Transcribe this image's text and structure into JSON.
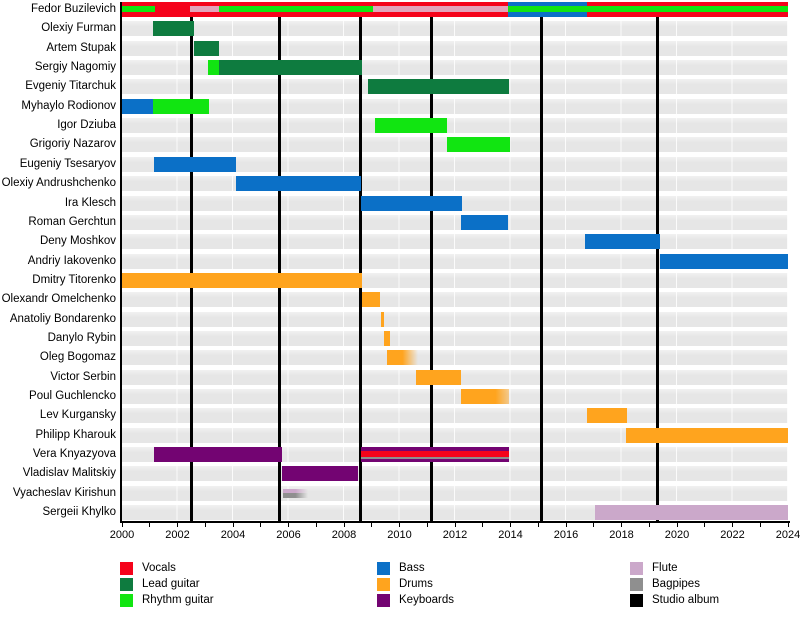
{
  "chart_data": {
    "type": "bar",
    "subtype": "band-members-timeline-gantt",
    "title": "",
    "xlabel": "",
    "ylabel": "",
    "axis": {
      "start": 2000,
      "end": 2024,
      "label_step": 2,
      "tick_step": 1
    },
    "grid": "row-bands-with-2yr-separators",
    "legend_position": "bottom",
    "colors": {
      "vocals": "#F5031B",
      "lead_guitar": "#0E7B3F",
      "rhythm_guitar": "#11E511",
      "bass": "#0B70C7",
      "drums": "#FFA41E",
      "keyboards": "#730472",
      "flute": "#CBA8CA",
      "flute_alt": "#E2A4BB",
      "bagpipes": "#8F8F8F",
      "studio_album": "#000000",
      "row_band": "#E7E7E7"
    },
    "legend": [
      {
        "role": "vocals",
        "label": "Vocals"
      },
      {
        "role": "lead_guitar",
        "label": "Lead guitar"
      },
      {
        "role": "rhythm_guitar",
        "label": "Rhythm guitar"
      },
      {
        "role": "bass",
        "label": "Bass"
      },
      {
        "role": "drums",
        "label": "Drums"
      },
      {
        "role": "keyboards",
        "label": "Keyboards"
      },
      {
        "role": "flute",
        "label": "Flute"
      },
      {
        "role": "bagpipes",
        "label": "Bagpipes"
      },
      {
        "role": "studio_album",
        "label": "Studio album"
      }
    ],
    "studio_albums": {
      "label": "Studio album",
      "years": [
        2002.5,
        2005.67,
        2008.61,
        2011.14,
        2015.11,
        2019.31
      ]
    },
    "members": [
      {
        "name": "Fedor Buzilevich",
        "segments": [
          {
            "role": "vocals",
            "start": 2000,
            "end": 2013.9
          },
          {
            "role": "bass",
            "start": 2013.9,
            "end": 2016.75
          },
          {
            "role": "vocals",
            "start": 2016.75,
            "end": 2024
          },
          {
            "role": "rhythm_guitar",
            "start": 2000,
            "end": 2001.2,
            "layer": "stripe"
          },
          {
            "role": "flute",
            "start": 2002.45,
            "end": 2003.5,
            "layer": "stripe",
            "color_key": "flute_alt"
          },
          {
            "role": "rhythm_guitar",
            "start": 2003.5,
            "end": 2009.05,
            "layer": "stripe"
          },
          {
            "role": "flute",
            "start": 2009.05,
            "end": 2013.9,
            "layer": "stripe",
            "color_key": "flute_alt"
          },
          {
            "role": "rhythm_guitar",
            "start": 2013.9,
            "end": 2024,
            "layer": "stripe"
          }
        ]
      },
      {
        "name": "Olexiy Furman",
        "segments": [
          {
            "role": "lead_guitar",
            "start": 2001.1,
            "end": 2002.6
          }
        ]
      },
      {
        "name": "Artem Stupak",
        "segments": [
          {
            "role": "lead_guitar",
            "start": 2002.6,
            "end": 2003.5
          }
        ]
      },
      {
        "name": "Sergiy Nagomiy",
        "segments": [
          {
            "role": "rhythm_guitar",
            "start": 2003.1,
            "end": 2003.5
          },
          {
            "role": "lead_guitar",
            "start": 2003.5,
            "end": 2008.65
          }
        ]
      },
      {
        "name": "Evgeniy Titarchuk",
        "segments": [
          {
            "role": "lead_guitar",
            "start": 2008.85,
            "end": 2013.95
          }
        ]
      },
      {
        "name": "Myhaylo Rodionov",
        "segments": [
          {
            "role": "bass",
            "start": 2000,
            "end": 2001.1
          },
          {
            "role": "rhythm_guitar",
            "start": 2001.1,
            "end": 2003.15
          }
        ]
      },
      {
        "name": "Igor Dziuba",
        "segments": [
          {
            "role": "rhythm_guitar",
            "start": 2009.1,
            "end": 2011.7
          }
        ]
      },
      {
        "name": "Grigoriy Nazarov",
        "segments": [
          {
            "role": "rhythm_guitar",
            "start": 2011.7,
            "end": 2014
          }
        ]
      },
      {
        "name": "Eugeniy Tsesaryov",
        "segments": [
          {
            "role": "bass",
            "start": 2001.15,
            "end": 2004.1
          }
        ]
      },
      {
        "name": "Olexiy Andrushchenko",
        "segments": [
          {
            "role": "bass",
            "start": 2004.1,
            "end": 2008.6
          }
        ]
      },
      {
        "name": "Ira Klesch",
        "segments": [
          {
            "role": "bass",
            "start": 2008.6,
            "end": 2012.25
          }
        ]
      },
      {
        "name": "Roman Gerchtun",
        "segments": [
          {
            "role": "bass",
            "start": 2012.2,
            "end": 2013.9
          }
        ]
      },
      {
        "name": "Deny Moshkov",
        "segments": [
          {
            "role": "bass",
            "start": 2016.7,
            "end": 2019.4
          }
        ]
      },
      {
        "name": "Andriy Iakovenko",
        "segments": [
          {
            "role": "bass",
            "start": 2019.4,
            "end": 2024
          }
        ]
      },
      {
        "name": "Dmitry Titorenko",
        "segments": [
          {
            "role": "drums",
            "start": 2000,
            "end": 2008.65
          }
        ]
      },
      {
        "name": "Olexandr Omelchenko",
        "segments": [
          {
            "role": "drums",
            "start": 2008.65,
            "end": 2009.3
          }
        ]
      },
      {
        "name": "Anatoliy Bondarenko",
        "segments": [
          {
            "role": "drums",
            "start": 2009.33,
            "end": 2009.45
          }
        ]
      },
      {
        "name": "Danylo Rybin",
        "segments": [
          {
            "role": "drums",
            "start": 2009.45,
            "end": 2009.67
          }
        ]
      },
      {
        "name": "Oleg Bogomaz",
        "segments": [
          {
            "role": "drums",
            "start": 2009.55,
            "end": 2010.65,
            "fade": "right"
          }
        ]
      },
      {
        "name": "Victor Serbin",
        "segments": [
          {
            "role": "drums",
            "start": 2010.6,
            "end": 2012.2
          }
        ]
      },
      {
        "name": "Poul Guchlencko",
        "segments": [
          {
            "role": "drums",
            "start": 2012.2,
            "end": 2013.95,
            "fade": "right_soft"
          }
        ]
      },
      {
        "name": "Lev Kurgansky",
        "segments": [
          {
            "role": "drums",
            "start": 2016.75,
            "end": 2018.2
          }
        ]
      },
      {
        "name": "Philipp Kharouk",
        "segments": [
          {
            "role": "drums",
            "start": 2018.15,
            "end": 2024
          }
        ]
      },
      {
        "name": "Vera Knyazyova",
        "segments": [
          {
            "role": "keyboards",
            "start": 2001.15,
            "end": 2005.75
          },
          {
            "role": "keyboards",
            "start": 2008.6,
            "end": 2013.95
          },
          {
            "role": "vocals",
            "start": 2008.6,
            "end": 2013.95,
            "layer": "stripe"
          },
          {
            "role": "bagpipes",
            "start": 2008.6,
            "end": 2013.95,
            "layer": "thinline"
          }
        ]
      },
      {
        "name": "Vladislav Malitskiy",
        "segments": [
          {
            "role": "keyboards",
            "start": 2005.75,
            "end": 2008.5
          }
        ]
      },
      {
        "name": "Vyacheslav Kirishun",
        "segments": [
          {
            "role": "flute",
            "start": 2005.8,
            "end": 2006.7,
            "layer": "half_top",
            "fade": "right"
          },
          {
            "role": "bagpipes",
            "start": 2005.8,
            "end": 2006.7,
            "layer": "half_bottom",
            "fade": "right"
          }
        ]
      },
      {
        "name": "Sergeii Khylko",
        "segments": [
          {
            "role": "flute",
            "start": 2017.05,
            "end": 2024
          }
        ]
      }
    ]
  },
  "layout_text": {
    "x_tick_labels": [
      "2000",
      "2002",
      "2004",
      "2006",
      "2008",
      "2010",
      "2012",
      "2014",
      "2016",
      "2018",
      "2020",
      "2022",
      "2024"
    ]
  }
}
